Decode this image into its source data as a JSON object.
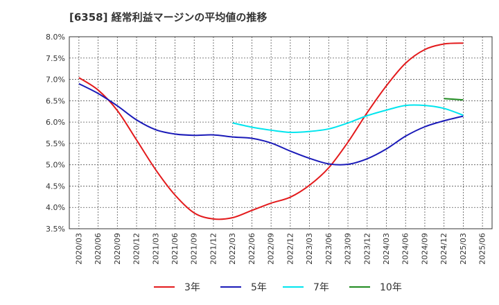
{
  "chart_data": {
    "type": "line",
    "title": "[6358]  経常利益マージンの平均値の推移",
    "xlabel": "",
    "ylabel": "",
    "ylim": [
      3.5,
      8.0
    ],
    "grid": true,
    "legend_position": "bottom",
    "x_ticks": [
      "2020/03",
      "2020/06",
      "2020/09",
      "2020/12",
      "2021/03",
      "2021/06",
      "2021/09",
      "2021/12",
      "2022/03",
      "2022/06",
      "2022/09",
      "2022/12",
      "2023/03",
      "2023/06",
      "2023/09",
      "2023/12",
      "2024/03",
      "2024/06",
      "2024/09",
      "2024/12",
      "2025/03",
      "2025/06"
    ],
    "y_ticks": [
      "3.5%",
      "4.0%",
      "4.5%",
      "5.0%",
      "5.5%",
      "6.0%",
      "6.5%",
      "7.0%",
      "7.5%",
      "8.0%"
    ],
    "series": [
      {
        "name": "3年",
        "color": "#e31a1c",
        "x": [
          "2020/03",
          "2020/06",
          "2020/09",
          "2020/12",
          "2021/03",
          "2021/06",
          "2021/09",
          "2021/12",
          "2022/03",
          "2022/06",
          "2022/09",
          "2022/12",
          "2023/03",
          "2023/06",
          "2023/09",
          "2023/12",
          "2024/03",
          "2024/06",
          "2024/09",
          "2024/12",
          "2025/03"
        ],
        "values": [
          7.04,
          6.75,
          6.27,
          5.58,
          4.88,
          4.29,
          3.87,
          3.73,
          3.76,
          3.93,
          4.1,
          4.24,
          4.52,
          4.93,
          5.53,
          6.22,
          6.85,
          7.38,
          7.7,
          7.83,
          7.85
        ]
      },
      {
        "name": "5年",
        "color": "#1a1ab8",
        "x": [
          "2020/03",
          "2020/06",
          "2020/09",
          "2020/12",
          "2021/03",
          "2021/06",
          "2021/09",
          "2021/12",
          "2022/03",
          "2022/06",
          "2022/09",
          "2022/12",
          "2023/03",
          "2023/06",
          "2023/09",
          "2023/12",
          "2024/03",
          "2024/06",
          "2024/09",
          "2024/12",
          "2025/03"
        ],
        "values": [
          6.9,
          6.67,
          6.38,
          6.05,
          5.82,
          5.72,
          5.69,
          5.7,
          5.65,
          5.62,
          5.51,
          5.32,
          5.15,
          5.02,
          5.01,
          5.14,
          5.37,
          5.67,
          5.89,
          6.03,
          6.14
        ]
      },
      {
        "name": "7年",
        "color": "#00e5ee",
        "x": [
          "2022/03",
          "2022/06",
          "2022/09",
          "2022/12",
          "2023/03",
          "2023/06",
          "2023/09",
          "2023/12",
          "2024/03",
          "2024/06",
          "2024/09",
          "2024/12",
          "2025/03"
        ],
        "values": [
          5.98,
          5.88,
          5.81,
          5.76,
          5.78,
          5.84,
          5.98,
          6.15,
          6.28,
          6.39,
          6.39,
          6.32,
          6.16
        ]
      },
      {
        "name": "10年",
        "color": "#1f8a1f",
        "x": [
          "2024/12",
          "2025/03"
        ],
        "values": [
          6.55,
          6.52
        ]
      }
    ]
  }
}
